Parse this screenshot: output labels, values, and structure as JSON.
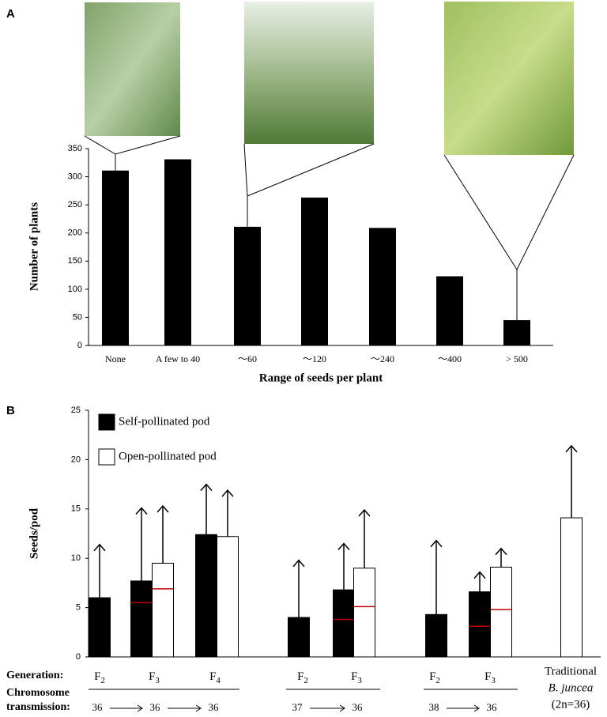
{
  "chart_data": [
    {
      "type": "bar",
      "panel_label": "A",
      "ylabel": "Number of plants",
      "xlabel": "Range of seeds per plant",
      "categories": [
        "None",
        "A few to 40",
        "～60",
        "～120",
        "～240",
        "～400",
        "> 500"
      ],
      "values": [
        311,
        331,
        211,
        263,
        209,
        123,
        45
      ],
      "color": "#000000",
      "ylim": [
        0,
        350
      ],
      "yticks": [
        0,
        50,
        100,
        150,
        200,
        250,
        300,
        350
      ]
    },
    {
      "type": "bar_error",
      "panel_label": "B",
      "ylabel": "Seeds/pod",
      "ylim": [
        0,
        25
      ],
      "yticks": [
        0,
        5,
        10,
        15,
        20,
        25
      ],
      "row_labels": [
        "Generation:",
        "Chromosome",
        "transmission:"
      ],
      "generations": [
        {
          "letter": "F",
          "sub": "2"
        },
        {
          "letter": "F",
          "sub": "3"
        },
        {
          "letter": "F",
          "sub": "4"
        },
        {
          "letter": "F",
          "sub": "2"
        },
        {
          "letter": "F",
          "sub": "3"
        },
        {
          "letter": "F",
          "sub": "2"
        },
        {
          "letter": "F",
          "sub": "3"
        }
      ],
      "traditional": [
        "Traditional",
        "B. juncea",
        "(2n=36)"
      ],
      "chromosome_groups": [
        [
          36,
          36,
          36
        ],
        [
          37,
          36
        ],
        [
          38,
          36
        ]
      ],
      "line_color": "#c00000",
      "series": [
        {
          "name": "Self-pollinated pod",
          "color": "#000000",
          "values": [
            6.0,
            7.7,
            12.4,
            4.0,
            6.8,
            4.3,
            6.6,
            null
          ],
          "errors": [
            5.4,
            7.4,
            5.1,
            5.8,
            4.7,
            7.5,
            2.0,
            null
          ],
          "lines": [
            null,
            5.5,
            null,
            null,
            3.8,
            null,
            3.1,
            null
          ]
        },
        {
          "name": "Open-pollinated pod",
          "color": "#ffffff",
          "values": [
            null,
            9.5,
            12.2,
            null,
            9.0,
            null,
            9.1,
            14.1
          ],
          "errors": [
            null,
            5.8,
            4.7,
            null,
            5.9,
            null,
            1.9,
            7.3
          ],
          "lines": [
            null,
            6.9,
            null,
            null,
            5.1,
            null,
            4.8,
            null
          ]
        }
      ]
    }
  ]
}
